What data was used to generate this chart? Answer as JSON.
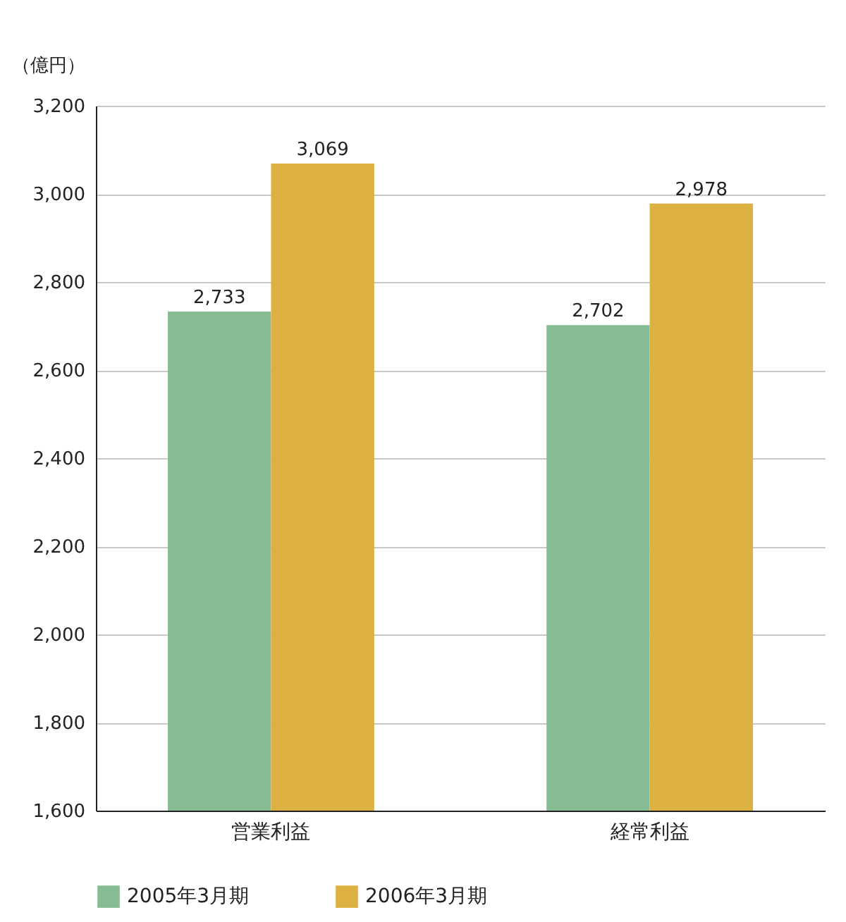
{
  "chart_data": {
    "type": "bar",
    "ylabel": "（億円）",
    "categories": [
      "営業利益",
      "経常利益"
    ],
    "series": [
      {
        "name": "2005年3月期",
        "color": "#86bc94",
        "values": [
          2733,
          2702
        ],
        "value_labels": [
          "2,733",
          "2,702"
        ]
      },
      {
        "name": "2006年3月期",
        "color": "#dcb142",
        "values": [
          3069,
          2978
        ],
        "value_labels": [
          "3,069",
          "2,978"
        ]
      }
    ],
    "ylim": [
      1600,
      3200
    ],
    "yticks": [
      {
        "value": 1600,
        "label": "1,600"
      },
      {
        "value": 1800,
        "label": "1,800"
      },
      {
        "value": 2000,
        "label": "2,000"
      },
      {
        "value": 2200,
        "label": "2,200"
      },
      {
        "value": 2400,
        "label": "2,400"
      },
      {
        "value": 2600,
        "label": "2,600"
      },
      {
        "value": 2800,
        "label": "2,800"
      },
      {
        "value": 3000,
        "label": "3,000"
      },
      {
        "value": 3200,
        "label": "3,200"
      }
    ],
    "grid": "y",
    "legend": "bottom"
  }
}
